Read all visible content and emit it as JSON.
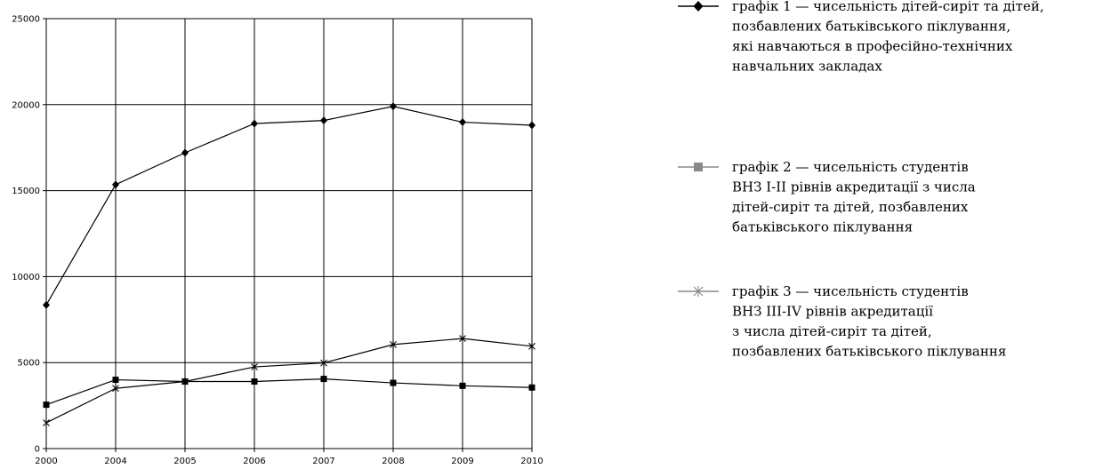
{
  "chart_data": {
    "type": "line",
    "categories": [
      "2000",
      "2004",
      "2005",
      "2006",
      "2007",
      "2008",
      "2009",
      "2010"
    ],
    "ylim": [
      0,
      25000
    ],
    "yticks": [
      0,
      5000,
      10000,
      15000,
      20000,
      25000
    ],
    "grid": true,
    "legend_position": "right",
    "series": [
      {
        "name": "графік 1 — чисельність дітей-сиріт та дітей, позбавлених батьківського піклування, які навчаються в професійно-технічних навчальних закладах",
        "name_lines": [
          "графік 1 — чисельність дітей-сиріт та дітей,",
          "позбавлених батьківського піклування,",
          "які навчаються в професійно-технічних",
          "навчальних закладах"
        ],
        "marker": "diamond",
        "color": "#000000",
        "values": [
          8350,
          15350,
          17200,
          18900,
          19080,
          19900,
          18980,
          18800
        ]
      },
      {
        "name": "графік 2 — чисельність студентів ВНЗ І-ІІ рівнів акредитації з числа дітей-сиріт та дітей, позбавлених батьківського піклування",
        "name_lines": [
          "графік 2 — чисельність студентів",
          "ВНЗ І-ІІ рівнів акредитації з числа",
          "дітей-сиріт та дітей, позбавлених",
          "батьківського піклування"
        ],
        "marker": "square",
        "color": "#000000",
        "legend_color": "#888888",
        "values": [
          2550,
          4000,
          3900,
          3900,
          4050,
          3820,
          3650,
          3550
        ]
      },
      {
        "name": "графік 3 — чисельність студентів ВНЗ ІІІ-IV рівнів акредитації з числа дітей-сиріт та дітей, позбавлених батьківського піклування",
        "name_lines": [
          "графік 3 — чисельність студентів",
          "ВНЗ ІІІ-IV рівнів акредитації",
          "з числа дітей-сиріт та дітей,",
          "позбавлених батьківського піклування"
        ],
        "marker": "star",
        "color": "#000000",
        "legend_color": "#888888",
        "values": [
          1500,
          3500,
          3900,
          4750,
          4980,
          6050,
          6400,
          5950
        ]
      }
    ]
  }
}
